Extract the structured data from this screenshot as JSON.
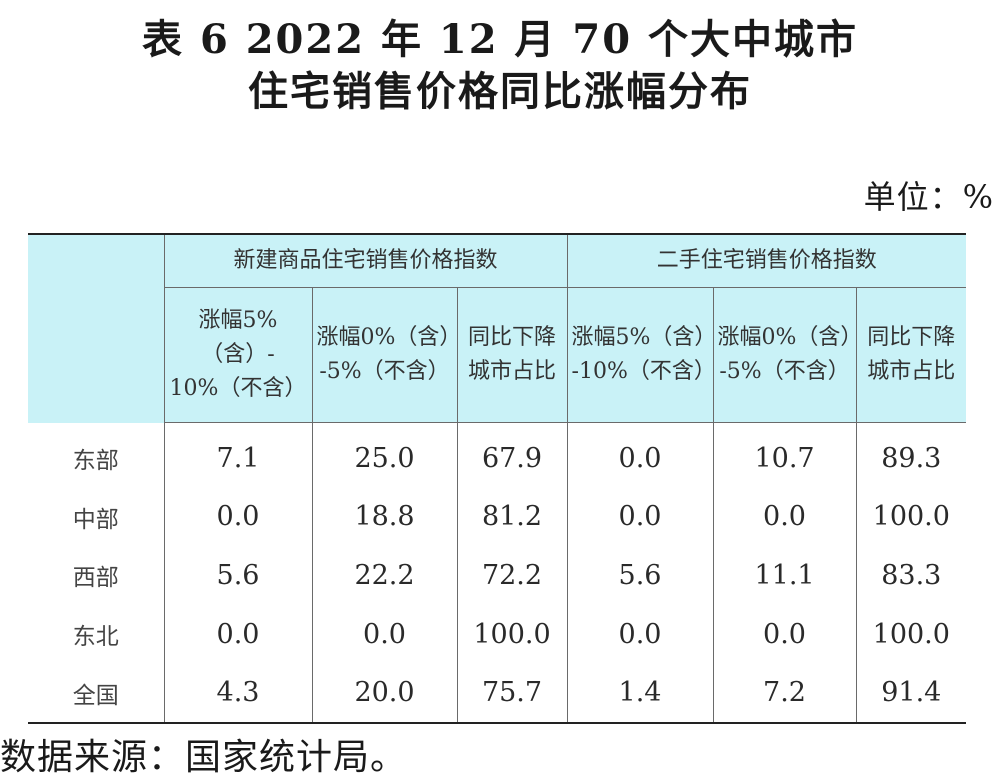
{
  "title_line1": "表 6   2022 年 12 月 70 个大中城市",
  "title_line2": "住宅销售价格同比涨幅分布",
  "unit": "单位：%",
  "table": {
    "group_headers": [
      "新建商品住宅销售价格指数",
      "二手住宅销售价格指数"
    ],
    "columns": [
      {
        "line1": "涨幅5%（含）-",
        "line2": "10%（不含）"
      },
      {
        "line1": "涨幅0%（含）",
        "line2": "-5%（不含）"
      },
      {
        "line1": "同比下降",
        "line2": "城市占比"
      },
      {
        "line1": "涨幅5%（含）",
        "line2": "-10%（不含）"
      },
      {
        "line1": "涨幅0%（含）",
        "line2": "-5%（不含）"
      },
      {
        "line1": "同比下降",
        "line2": "城市占比"
      }
    ],
    "rows": [
      {
        "region": "东部",
        "values": [
          "7.1",
          "25.0",
          "67.9",
          "0.0",
          "10.7",
          "89.3"
        ]
      },
      {
        "region": "中部",
        "values": [
          "0.0",
          "18.8",
          "81.2",
          "0.0",
          "0.0",
          "100.0"
        ]
      },
      {
        "region": "西部",
        "values": [
          "5.6",
          "22.2",
          "72.2",
          "5.6",
          "11.1",
          "83.3"
        ]
      },
      {
        "region": "东北",
        "values": [
          "0.0",
          "0.0",
          "100.0",
          "0.0",
          "0.0",
          "100.0"
        ]
      },
      {
        "region": "全国",
        "values": [
          "4.3",
          "20.0",
          "75.7",
          "1.4",
          "7.2",
          "91.4"
        ]
      }
    ]
  },
  "source": "数据来源：国家统计局。",
  "colors": {
    "header_background": "#c9f2f7"
  }
}
